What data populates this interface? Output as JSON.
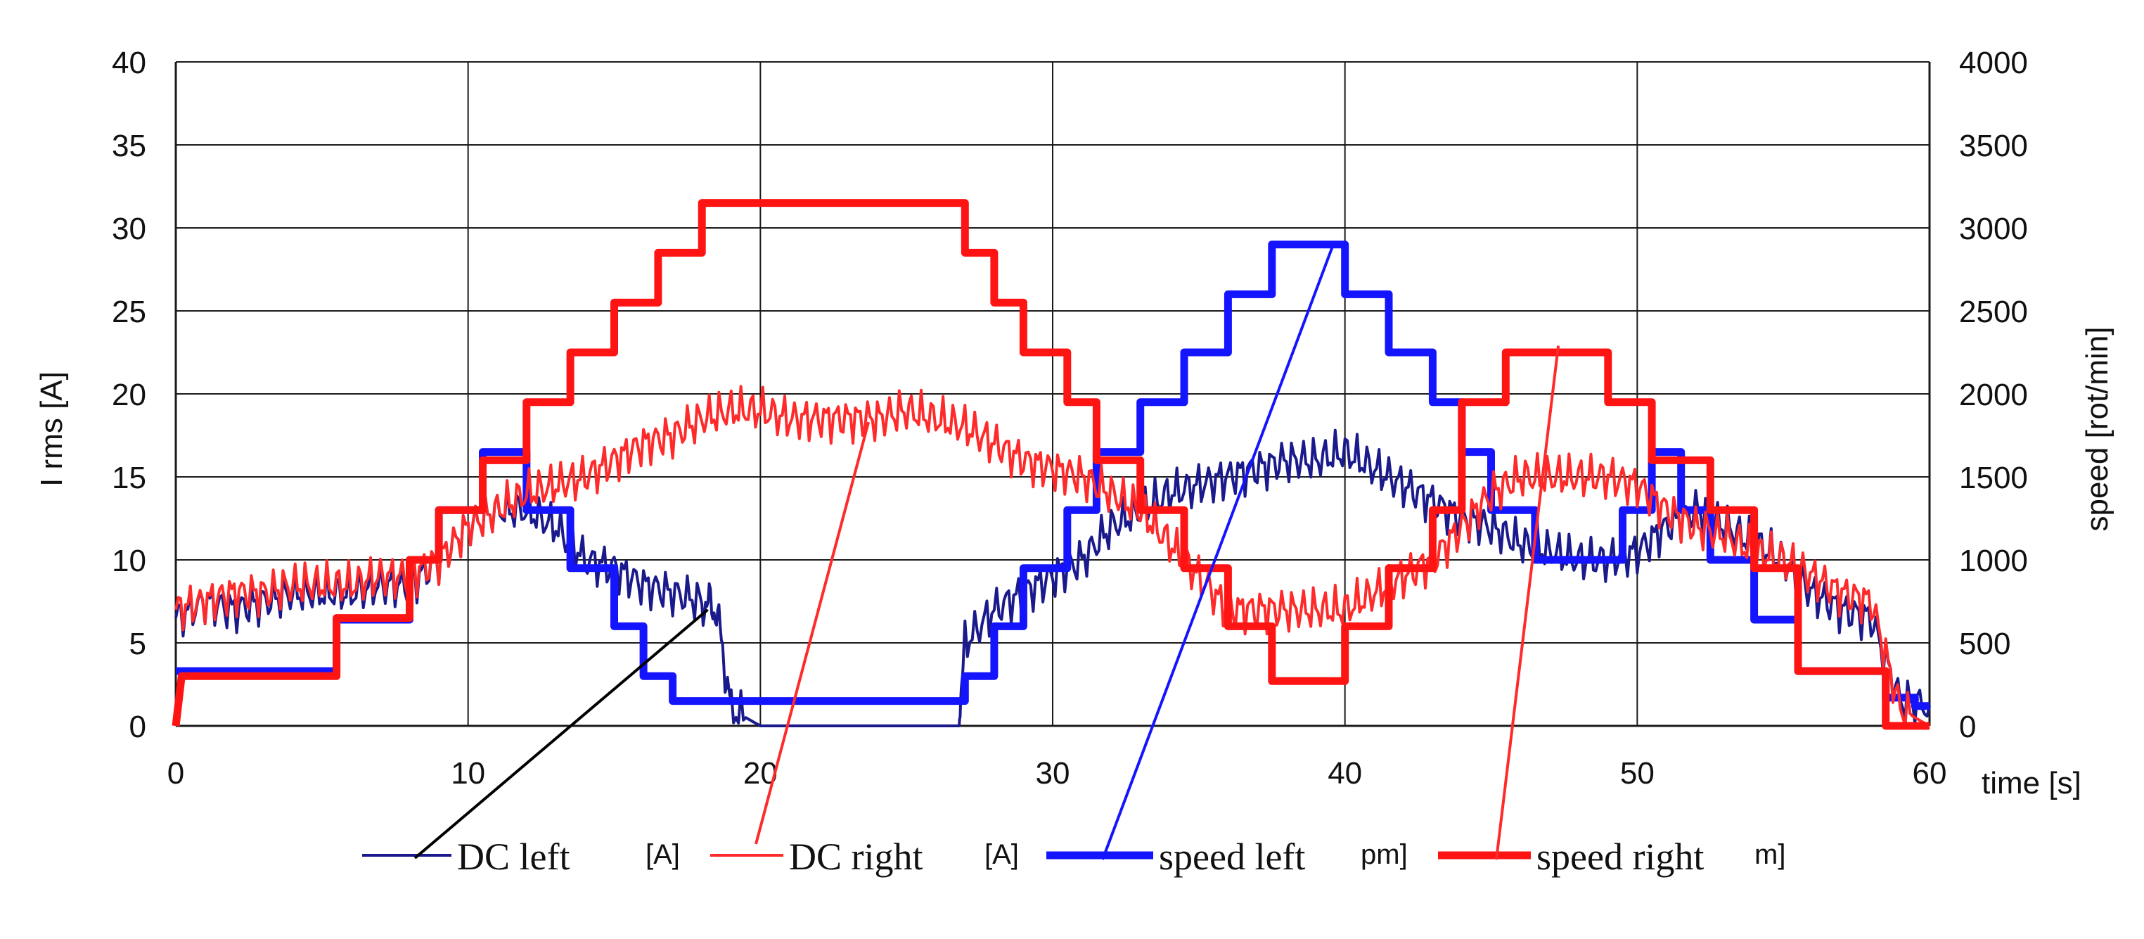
{
  "chart_data": {
    "type": "line",
    "xlabel": "time [s]",
    "ylabel_left": "I rms [A]",
    "ylabel_right": "speed [rot/min]",
    "xlim": [
      0,
      60
    ],
    "ylim_left": [
      0,
      40
    ],
    "ylim_right": [
      0,
      4000
    ],
    "x_ticks": [
      "0",
      "10",
      "20",
      "30",
      "40",
      "50",
      "60"
    ],
    "y_left_ticks": [
      "0",
      "5",
      "10",
      "15",
      "20",
      "25",
      "30",
      "35",
      "40"
    ],
    "y_right_ticks": [
      "0",
      "500",
      "1000",
      "1500",
      "2000",
      "2500",
      "3000",
      "3500",
      "4000"
    ],
    "grid": true,
    "legend_position": "bottom",
    "legend": [
      {
        "label": "DC left",
        "suffix": "[A]"
      },
      {
        "label": "DC right",
        "suffix": "[A]"
      },
      {
        "label": "speed left",
        "suffix": "pm]"
      },
      {
        "label": "speed right",
        "suffix": "m]"
      }
    ],
    "series": [
      {
        "name": "DC left",
        "axis": "left",
        "color": "#1a1a8c",
        "x": [
          0,
          1,
          2,
          3,
          4,
          5,
          6,
          7,
          8,
          9,
          10,
          11,
          12,
          13,
          14,
          15,
          16,
          17,
          18,
          18.5,
          19,
          20,
          21,
          22,
          23,
          24,
          25,
          26,
          26.8,
          27,
          28,
          29,
          30,
          31,
          32,
          33,
          34,
          35,
          36,
          37,
          38,
          39,
          40,
          41,
          42,
          43,
          44,
          45,
          46,
          47,
          48,
          49,
          50,
          51,
          52,
          53,
          54,
          55,
          56,
          57,
          58,
          59,
          60
        ],
        "y": [
          6.5,
          7.5,
          7,
          7.5,
          8,
          8,
          8,
          8.5,
          8.5,
          10,
          12,
          13,
          13,
          12,
          10,
          9.5,
          8.5,
          8,
          7.5,
          7,
          1,
          0,
          0,
          0,
          0,
          0,
          0,
          0,
          0,
          5,
          7,
          8,
          9,
          10,
          12,
          13,
          14,
          14.5,
          15,
          15.5,
          16,
          16,
          16.5,
          15.5,
          14.5,
          13.5,
          12.5,
          12,
          11,
          10.5,
          10,
          10,
          10.5,
          12,
          13,
          12,
          11,
          10,
          8,
          7,
          6.5,
          1.5,
          1.2
        ]
      },
      {
        "name": "DC right",
        "axis": "left",
        "color": "#ff2a2a",
        "x": [
          0,
          1,
          2,
          3,
          4,
          5,
          6,
          7,
          8,
          9,
          10,
          11,
          12,
          13,
          14,
          15,
          16,
          17,
          18,
          19,
          20,
          21,
          22,
          23,
          24,
          25,
          26,
          27,
          28,
          29,
          30,
          31,
          32,
          33,
          34,
          35,
          36,
          37,
          38,
          39,
          40,
          41,
          42,
          43,
          44,
          45,
          46,
          47,
          48,
          49,
          50,
          51,
          52,
          53,
          54,
          55,
          56,
          57,
          58,
          59,
          60
        ],
        "y": [
          7,
          7.5,
          8,
          8,
          8.5,
          8.5,
          8.5,
          9,
          9,
          10,
          12,
          13,
          14,
          14.5,
          15,
          16,
          17,
          17.5,
          18.5,
          19,
          19,
          18.5,
          18.5,
          18.5,
          18.5,
          19,
          18.5,
          18,
          17,
          16,
          15.5,
          15,
          14,
          13,
          11,
          9,
          7,
          7,
          7,
          7,
          7,
          8,
          9,
          10,
          12,
          14,
          15,
          15,
          15,
          15,
          14.5,
          13,
          12,
          11.5,
          10.5,
          10,
          9,
          8,
          7.5,
          1,
          0
        ]
      },
      {
        "name": "speed left",
        "axis": "right",
        "color": "#1414ff",
        "x": [
          0,
          5.5,
          5.5,
          8,
          8,
          9,
          9,
          10.5,
          10.5,
          12,
          12,
          13.5,
          13.5,
          15,
          15,
          16,
          16,
          17,
          17,
          19,
          19,
          27,
          27,
          28,
          28,
          29,
          29,
          30.5,
          30.5,
          31.5,
          31.5,
          33,
          33,
          34.5,
          34.5,
          36,
          36,
          37.5,
          37.5,
          39.5,
          39.5,
          40,
          40,
          41.5,
          41.5,
          43,
          43,
          44,
          44,
          45,
          45,
          46.5,
          46.5,
          48,
          48,
          49.5,
          49.5,
          50.5,
          50.5,
          51.5,
          51.5,
          52.5,
          52.5,
          54,
          54,
          55.5,
          55.5,
          58.5,
          58.5,
          59.5,
          59.5,
          60
        ],
        "y": [
          330,
          330,
          640,
          640,
          1000,
          1000,
          1300,
          1300,
          1650,
          1650,
          1300,
          1300,
          950,
          950,
          600,
          600,
          300,
          300,
          150,
          150,
          150,
          150,
          300,
          300,
          600,
          600,
          950,
          950,
          1300,
          1300,
          1650,
          1650,
          1950,
          1950,
          2250,
          2250,
          2600,
          2600,
          2900,
          2900,
          2900,
          2900,
          2600,
          2600,
          2250,
          2250,
          1950,
          1950,
          1650,
          1650,
          1300,
          1300,
          1000,
          1000,
          1000,
          1000,
          1300,
          1300,
          1650,
          1650,
          1300,
          1300,
          1000,
          1000,
          640,
          640,
          330,
          330,
          170,
          170,
          120,
          120
        ]
      },
      {
        "name": "speed right",
        "axis": "right",
        "color": "#ff1414",
        "x": [
          0,
          0.2,
          5.5,
          5.5,
          8,
          8,
          9,
          9,
          10.5,
          10.5,
          12,
          12,
          13.5,
          13.5,
          15,
          15,
          16.5,
          16.5,
          18,
          18,
          27,
          27,
          28,
          28,
          29,
          29,
          30.5,
          30.5,
          31.5,
          31.5,
          33,
          33,
          34.5,
          34.5,
          36,
          36,
          37.5,
          37.5,
          39.5,
          39.5,
          40,
          40,
          41.5,
          41.5,
          43,
          43,
          44,
          44,
          45.5,
          45.5,
          49,
          49,
          50.5,
          50.5,
          52.5,
          52.5,
          54,
          54,
          55.5,
          55.5,
          58.5,
          58.5,
          60
        ],
        "y": [
          0,
          300,
          300,
          650,
          650,
          1000,
          1000,
          1300,
          1300,
          1600,
          1600,
          1950,
          1950,
          2250,
          2250,
          2550,
          2550,
          2850,
          2850,
          3150,
          3150,
          2850,
          2850,
          2550,
          2550,
          2250,
          2250,
          1950,
          1950,
          1600,
          1600,
          1300,
          1300,
          950,
          950,
          600,
          600,
          270,
          270,
          270,
          270,
          600,
          600,
          950,
          950,
          1300,
          1300,
          1950,
          1950,
          2250,
          2250,
          1950,
          1950,
          1600,
          1600,
          1300,
          1300,
          950,
          950,
          330,
          330,
          0,
          0
        ]
      }
    ],
    "annotations": [
      {
        "series": "DC left",
        "from": [
          18.2,
          7.0
        ]
      },
      {
        "series": "DC right",
        "from": [
          23.7,
          18.3
        ]
      },
      {
        "series": "speed left",
        "from": [
          39.6,
          2900
        ]
      },
      {
        "series": "speed right",
        "from": [
          47.3,
          2290
        ]
      }
    ]
  }
}
